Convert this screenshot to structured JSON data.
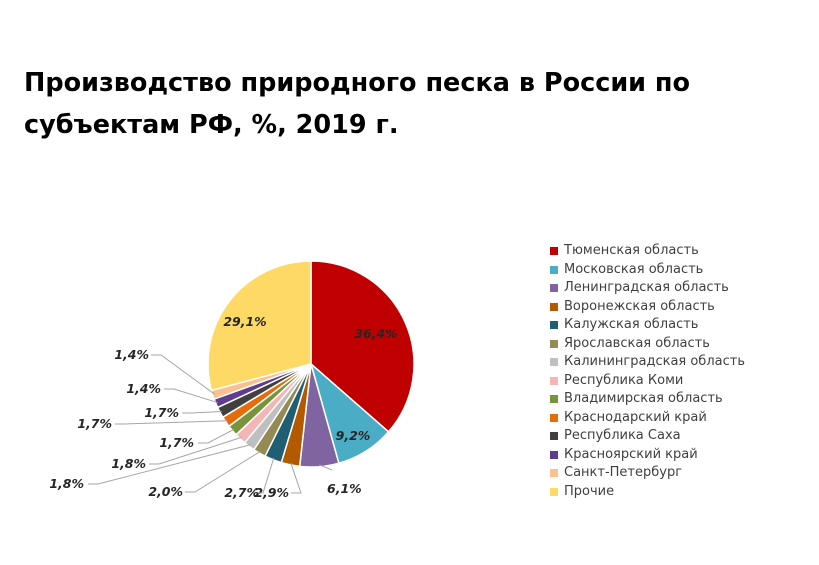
{
  "title": "Производство природного песка в России по субъектам РФ, %, 2019 г.",
  "chart_data": {
    "type": "pie",
    "legend_position": "right",
    "slices": [
      {
        "name": "Тюменская область",
        "value": 36.4,
        "label": "36,4%",
        "color": "#C00000"
      },
      {
        "name": "Московская область",
        "value": 9.2,
        "label": "9,2%",
        "color": "#4BACC6"
      },
      {
        "name": "Ленинградская область",
        "value": 6.1,
        "label": "6,1%",
        "color": "#8064A2"
      },
      {
        "name": "Воронежская область",
        "value": 2.9,
        "label": "2,9%",
        "color": "#B35A00"
      },
      {
        "name": "Калужская область",
        "value": 2.7,
        "label": "2,7%",
        "color": "#1F5E73"
      },
      {
        "name": "Ярославская область",
        "value": 2.0,
        "label": "2,0%",
        "color": "#948A54"
      },
      {
        "name": "Калининградская область",
        "value": 1.8,
        "label": "1,8%",
        "color": "#BFBFBF"
      },
      {
        "name": "Республика Коми",
        "value": 1.8,
        "label": "1,8%",
        "color": "#F2B6B6"
      },
      {
        "name": "Владимирская область",
        "value": 1.7,
        "label": "1,7%",
        "color": "#77933C"
      },
      {
        "name": "Краснодарский край",
        "value": 1.7,
        "label": "1,7%",
        "color": "#E46C0A"
      },
      {
        "name": "Республика Саха",
        "value": 1.7,
        "label": "1,7%",
        "color": "#404040"
      },
      {
        "name": "Красноярский край",
        "value": 1.4,
        "label": "1,4%",
        "color": "#5F3C8C"
      },
      {
        "name": "Санкт-Петербург",
        "value": 1.4,
        "label": "1,4%",
        "color": "#FAC090"
      },
      {
        "name": "Прочие",
        "value": 29.1,
        "label": "29,1%",
        "color": "#FFD966"
      }
    ]
  }
}
